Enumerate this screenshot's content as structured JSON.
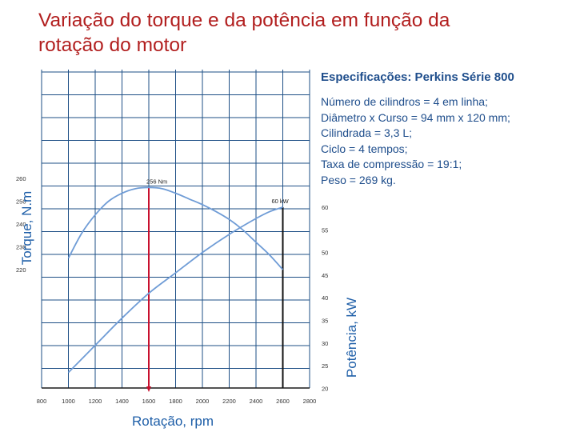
{
  "slide": {
    "title": "Variação do torque e da potência em função da\nrotação do motor"
  },
  "specs": {
    "title": "Especificações: Perkins Série 800",
    "lines": [
      "Número de cilindros = 4 em linha;",
      "Diâmetro x Curso = 94 mm x 120 mm;",
      "Cilindrada = 3,3 L;",
      "Ciclo = 4 tempos;",
      "Taxa de compressão = 19:1;",
      "Peso = 269 kg."
    ]
  },
  "chart_data": {
    "type": "line",
    "xlabel": "Rotação, rpm",
    "ylabel_left": "Torque, N.m",
    "ylabel_right": "Potência, kW",
    "xlim": [
      800,
      2800
    ],
    "x_ticks": [
      800,
      1000,
      1200,
      1400,
      1600,
      1800,
      2000,
      2200,
      2400,
      2600,
      2800
    ],
    "y_left_ticks": [
      220,
      230,
      240,
      250,
      260
    ],
    "y_right_ticks": [
      20,
      25,
      30,
      35,
      40,
      45,
      50,
      55,
      60
    ],
    "grid": true,
    "series": [
      {
        "axis": "left",
        "x": [
          1000,
          1100,
          1200,
          1300,
          1400,
          1500,
          1600,
          1700,
          1800,
          1900,
          2000,
          2100,
          2200,
          2300,
          2400,
          2500,
          2600
        ],
        "y": [
          225,
          236,
          244,
          250,
          253.5,
          255.5,
          256,
          255.5,
          253.5,
          251,
          248.5,
          245.5,
          242,
          237.5,
          232,
          226.5,
          220
        ]
      },
      {
        "axis": "right",
        "x": [
          1000,
          1200,
          1400,
          1600,
          1800,
          2000,
          2200,
          2400,
          2500,
          2600
        ],
        "y": [
          23.5,
          29.5,
          35.5,
          41,
          45.5,
          50,
          54,
          57.5,
          59,
          60
        ]
      }
    ],
    "annotations": [
      {
        "text": "256 Nm",
        "x": 1600,
        "y": 256,
        "axis": "left"
      },
      {
        "text": "60 kW",
        "x": 2600,
        "y": 60,
        "axis": "right"
      }
    ],
    "markers": [
      {
        "x": 1600,
        "color": "#c8102e"
      },
      {
        "x": 2600,
        "color": "#111111"
      }
    ]
  }
}
